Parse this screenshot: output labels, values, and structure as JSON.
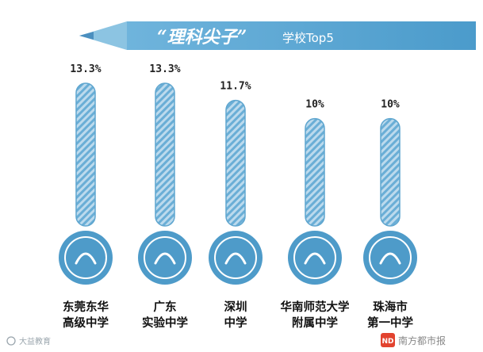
{
  "chart_data": {
    "type": "bar",
    "title": "“理科尖子”",
    "title_suffix": "学校Top5",
    "categories": [
      [
        "东莞东华",
        "高级中学"
      ],
      [
        "广东",
        "实验中学"
      ],
      [
        "深圳",
        "中学"
      ],
      [
        "华南师范大学",
        "附属中学"
      ],
      [
        "珠海市",
        "第一中学"
      ]
    ],
    "values": [
      13.3,
      13.3,
      11.7,
      10,
      10
    ],
    "value_labels": [
      "13.3%",
      "13.3%",
      "11.7%",
      "10%",
      "10%"
    ],
    "ylim": [
      0,
      13.3
    ],
    "grid": false,
    "bar_color": "#5fa6cf",
    "logo_color": "#4e9bc9"
  },
  "watermark": "大益教育",
  "brand_text": "南方都市报",
  "brand_badge": "ND"
}
